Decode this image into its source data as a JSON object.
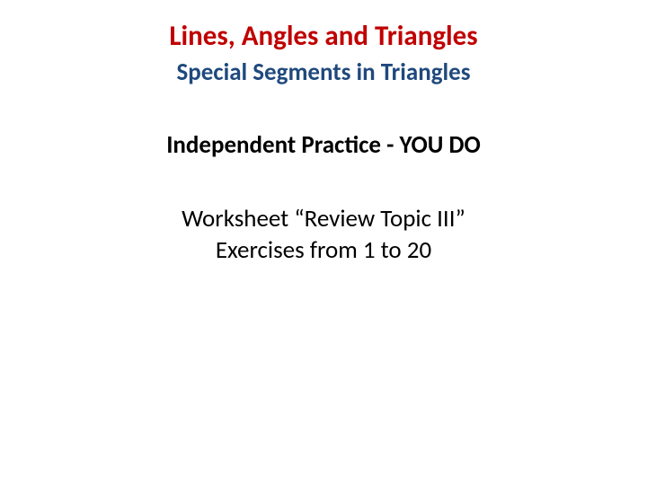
{
  "slide": {
    "main_title": "Lines, Angles and Triangles",
    "subtitle": "Special Segments in Triangles",
    "section_title": "Independent Practice - YOU DO",
    "body_line1": "Worksheet “Review Topic III”",
    "body_line2": "Exercises from 1 to 20"
  },
  "colors": {
    "title_color": "#c00000",
    "subtitle_color": "#1f497d",
    "text_color": "#000000",
    "background": "#ffffff"
  },
  "typography": {
    "title_fontsize": 31,
    "subtitle_fontsize": 27,
    "section_fontsize": 27,
    "body_fontsize": 27,
    "font_family": "Calibri"
  }
}
